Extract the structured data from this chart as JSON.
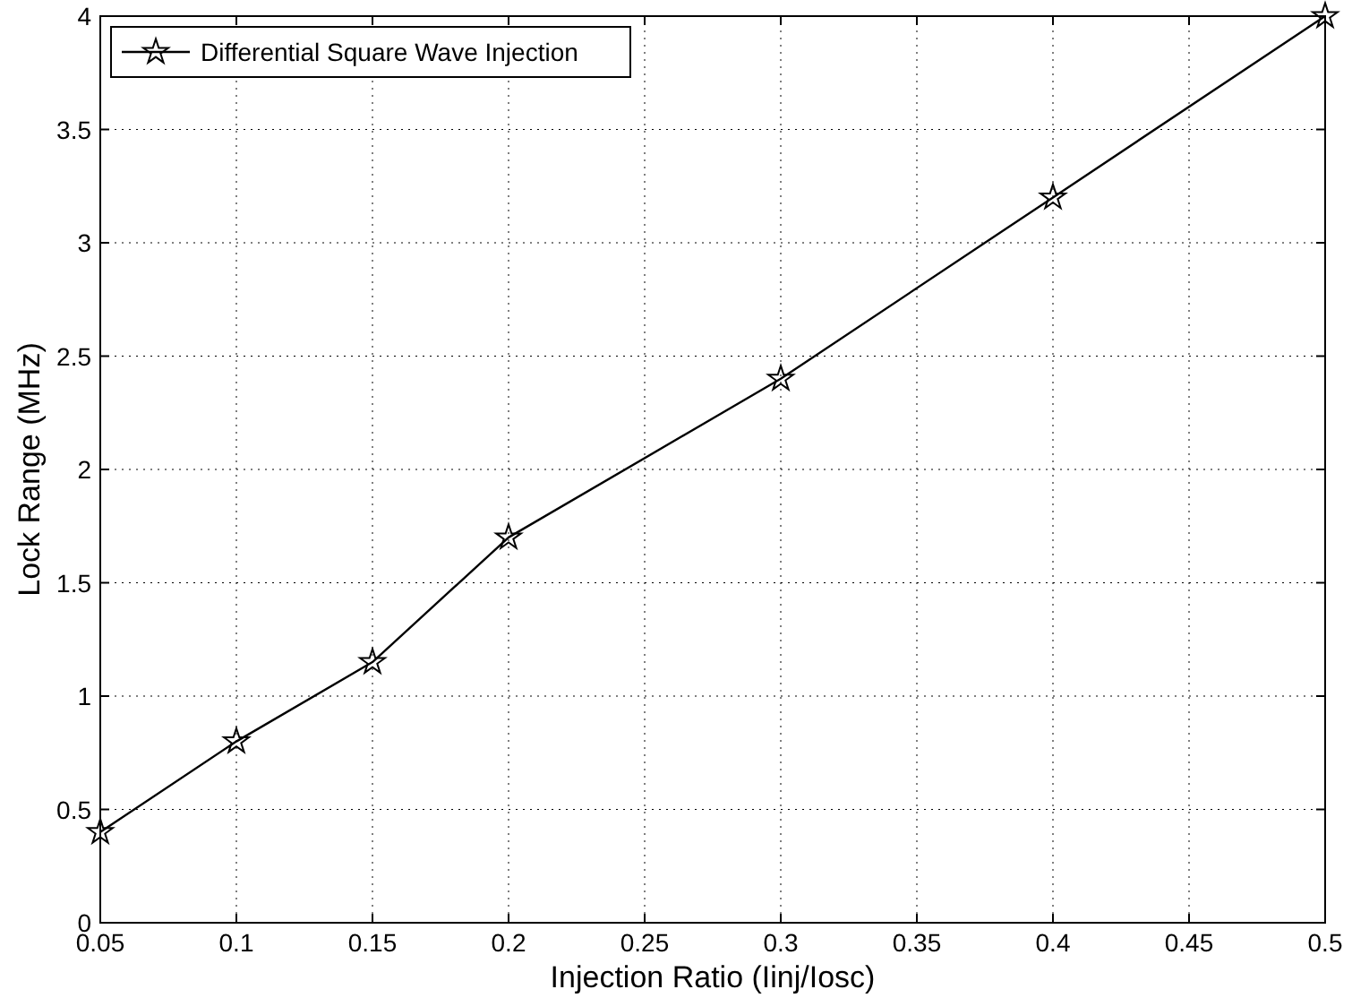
{
  "chart_data": {
    "type": "line",
    "xlabel": "Injection Ratio (Iinj/Iosc)",
    "ylabel": "Lock Range (MHz)",
    "x": [
      0.05,
      0.1,
      0.15,
      0.2,
      0.3,
      0.4,
      0.5
    ],
    "series": [
      {
        "name": "Differential Square Wave Injection",
        "color": "#000000",
        "values": [
          0.4,
          0.8,
          1.15,
          1.7,
          2.4,
          3.2,
          4
        ]
      }
    ],
    "xlim": [
      0.05,
      0.5
    ],
    "xticks": [
      0.05,
      0.1,
      0.15,
      0.2,
      0.25,
      0.3,
      0.35,
      0.4,
      0.45,
      0.5
    ],
    "ylim": [
      0,
      4
    ],
    "yticks": [
      0,
      0.5,
      1,
      1.5,
      2,
      2.5,
      3,
      3.5,
      4
    ],
    "grid": true,
    "legend": "top left",
    "marker": "star",
    "line_style": "solid"
  }
}
